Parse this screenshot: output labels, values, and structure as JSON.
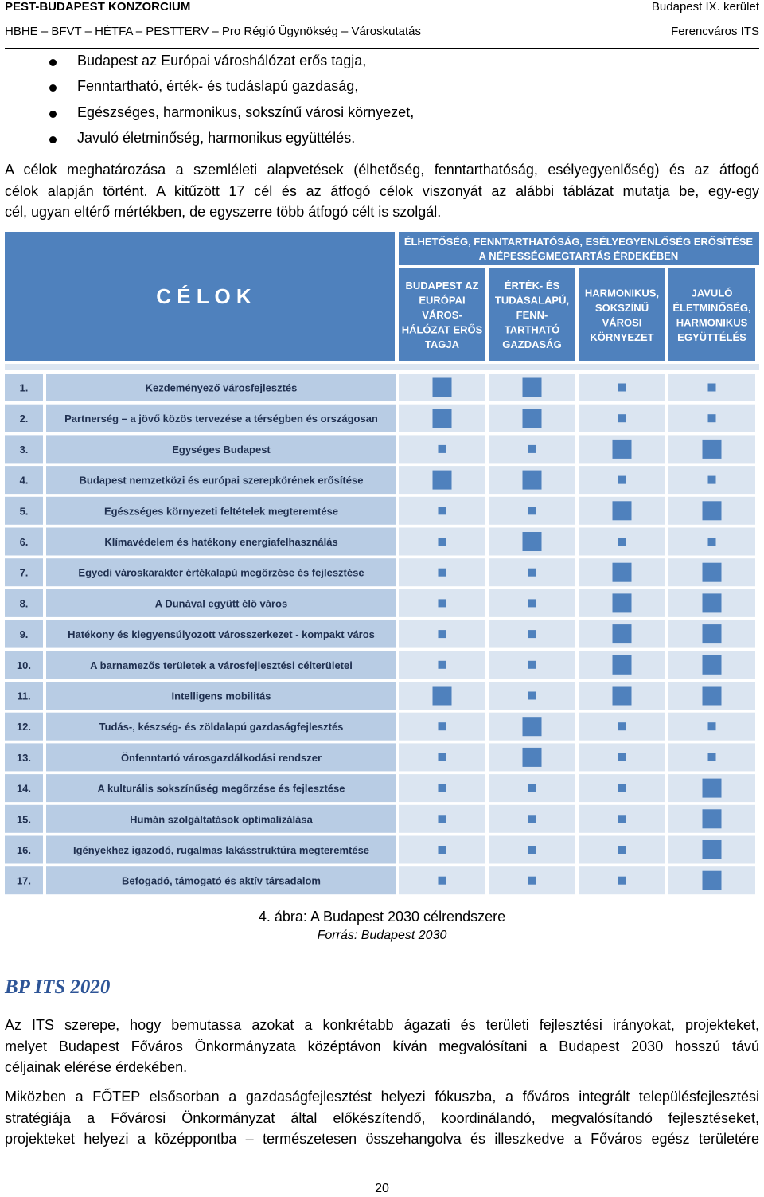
{
  "header": {
    "left_top": "PEST-BUDAPEST KONZORCIUM",
    "left_bottom": "HBHE – BFVT – HÉTFA – PESTTERV – Pro Régió Ügynökség – Városkutatás",
    "right_top": "Budapest IX. kerület",
    "right_bottom": "Ferencváros ITS"
  },
  "bullets": [
    "Budapest az Európai városhálózat erős tagja,",
    "Fenntartható, érték- és tudáslapú gazdaság,",
    "Egészséges, harmonikus, sokszínű városi környezet,",
    "Javuló életminőség, harmonikus együttélés."
  ],
  "para1": [
    "A célok meghatározása a szemléleti alapvetések (élhetőség, fenntarthatóság, esélyegyenlőség) és az átfogó",
    "célok alapján történt. A kitűzött 17 cél és az átfogó célok viszonyát az alábbi táblázat mutatja be, egy-egy",
    "cél, ugyan eltérő mértékben, de egyszerre több átfogó célt is szolgál."
  ],
  "figure": {
    "title": "C É L O K",
    "banner": [
      "ÉLHETŐSÉG, FENNTARTHATÓSÁG, ESÉLYEGYENLŐSÉG ERŐSÍTÉSE",
      "A NÉPESSÉGMEGTARTÁS ÉRDEKÉBEN"
    ],
    "columns": [
      [
        "BUDAPEST AZ",
        "EURÓPAI",
        "VÁROS-",
        "HÁLÓZAT ERŐS",
        "TAGJA"
      ],
      [
        "ÉRTÉK- ÉS",
        "TUDÁSALAPÚ,",
        "FENN-",
        "TARTHATÓ",
        "GAZDASÁG"
      ],
      [
        "HARMONIKUS,",
        "SOKSZÍNŰ",
        "VÁROSI",
        "KÖRNYEZET"
      ],
      [
        "JAVULÓ",
        "ÉLETMINŐSÉG,",
        "HARMONIKUS",
        "EGYÜTTÉLÉS"
      ]
    ],
    "legend_meaning": "large square = strong relation, small square = weaker relation",
    "color_header": "#4f81bd",
    "color_row_light": "#dbe5f1",
    "color_row_mid": "#b8cce4",
    "color_marker": "#4f81bd",
    "rows": [
      {
        "num": "1.",
        "label": "Kezdeményező városfejlesztés",
        "levels": [
          "L",
          "L",
          "S",
          "S"
        ]
      },
      {
        "num": "2.",
        "label": "Partnerség – a jövő közös tervezése a térségben és országosan",
        "levels": [
          "L",
          "L",
          "S",
          "S"
        ]
      },
      {
        "num": "3.",
        "label": "Egységes Budapest",
        "levels": [
          "S",
          "S",
          "L",
          "L"
        ]
      },
      {
        "num": "4.",
        "label": "Budapest nemzetközi és európai szerepkörének erősítése",
        "levels": [
          "L",
          "L",
          "S",
          "S"
        ]
      },
      {
        "num": "5.",
        "label": "Egészséges környezeti feltételek megteremtése",
        "levels": [
          "S",
          "S",
          "L",
          "L"
        ]
      },
      {
        "num": "6.",
        "label": "Klímavédelem és hatékony energiafelhasználás",
        "levels": [
          "S",
          "L",
          "S",
          "S"
        ]
      },
      {
        "num": "7.",
        "label": "Egyedi városkarakter értékalapú megőrzése és fejlesztése",
        "levels": [
          "S",
          "S",
          "L",
          "L"
        ]
      },
      {
        "num": "8.",
        "label": "A Dunával együtt élő város",
        "levels": [
          "S",
          "S",
          "L",
          "L"
        ]
      },
      {
        "num": "9.",
        "label": "Hatékony és kiegyensúlyozott városszerkezet - kompakt város",
        "levels": [
          "S",
          "S",
          "L",
          "L"
        ]
      },
      {
        "num": "10.",
        "label": "A barnamezős területek a városfejlesztési célterületei",
        "levels": [
          "S",
          "S",
          "L",
          "L"
        ]
      },
      {
        "num": "11.",
        "label": "Intelligens mobilitás",
        "levels": [
          "L",
          "S",
          "L",
          "L"
        ]
      },
      {
        "num": "12.",
        "label": "Tudás-, készség- és zöldalapú gazdaságfejlesztés",
        "levels": [
          "S",
          "L",
          "S",
          "S"
        ]
      },
      {
        "num": "13.",
        "label": "Önfenntartó városgazdálkodási rendszer",
        "levels": [
          "S",
          "L",
          "S",
          "S"
        ]
      },
      {
        "num": "14.",
        "label": "A kulturális sokszínűség megőrzése és fejlesztése",
        "levels": [
          "S",
          "S",
          "S",
          "L"
        ]
      },
      {
        "num": "15.",
        "label": "Humán szolgáltatások optimalizálása",
        "levels": [
          "S",
          "S",
          "S",
          "L"
        ]
      },
      {
        "num": "16.",
        "label": "Igényekhez igazodó, rugalmas lakásstruktúra megteremtése",
        "levels": [
          "S",
          "S",
          "S",
          "L"
        ]
      },
      {
        "num": "17.",
        "label": "Befogadó, támogató és aktív társadalom",
        "levels": [
          "S",
          "S",
          "S",
          "L"
        ]
      }
    ]
  },
  "caption": "4. ábra: A Budapest 2030 célrendszere",
  "source": "Forrás: Budapest 2030",
  "heading": "BP ITS 2020",
  "para2": [
    "Az ITS szerepe, hogy bemutassa azokat a konkrétabb ágazati és területi fejlesztési irányokat, projekteket,",
    "melyet Budapest Főváros Önkormányzata középtávon kíván megvalósítani a Budapest 2030 hosszú távú",
    "céljainak elérése érdekében."
  ],
  "para3": [
    "Miközben a FŐTEP elsősorban a gazdaságfejlesztést helyezi fókuszba, a főváros integrált településfejlesztési",
    "stratégiája a Fővárosi Önkormányzat által előkészítendő, koordinálandó, megvalósítandó fejlesztéseket,",
    "projekteket helyezi a középpontba – természetesen összehangolva és illeszkedve a Főváros egész területére"
  ],
  "page_number": "20"
}
